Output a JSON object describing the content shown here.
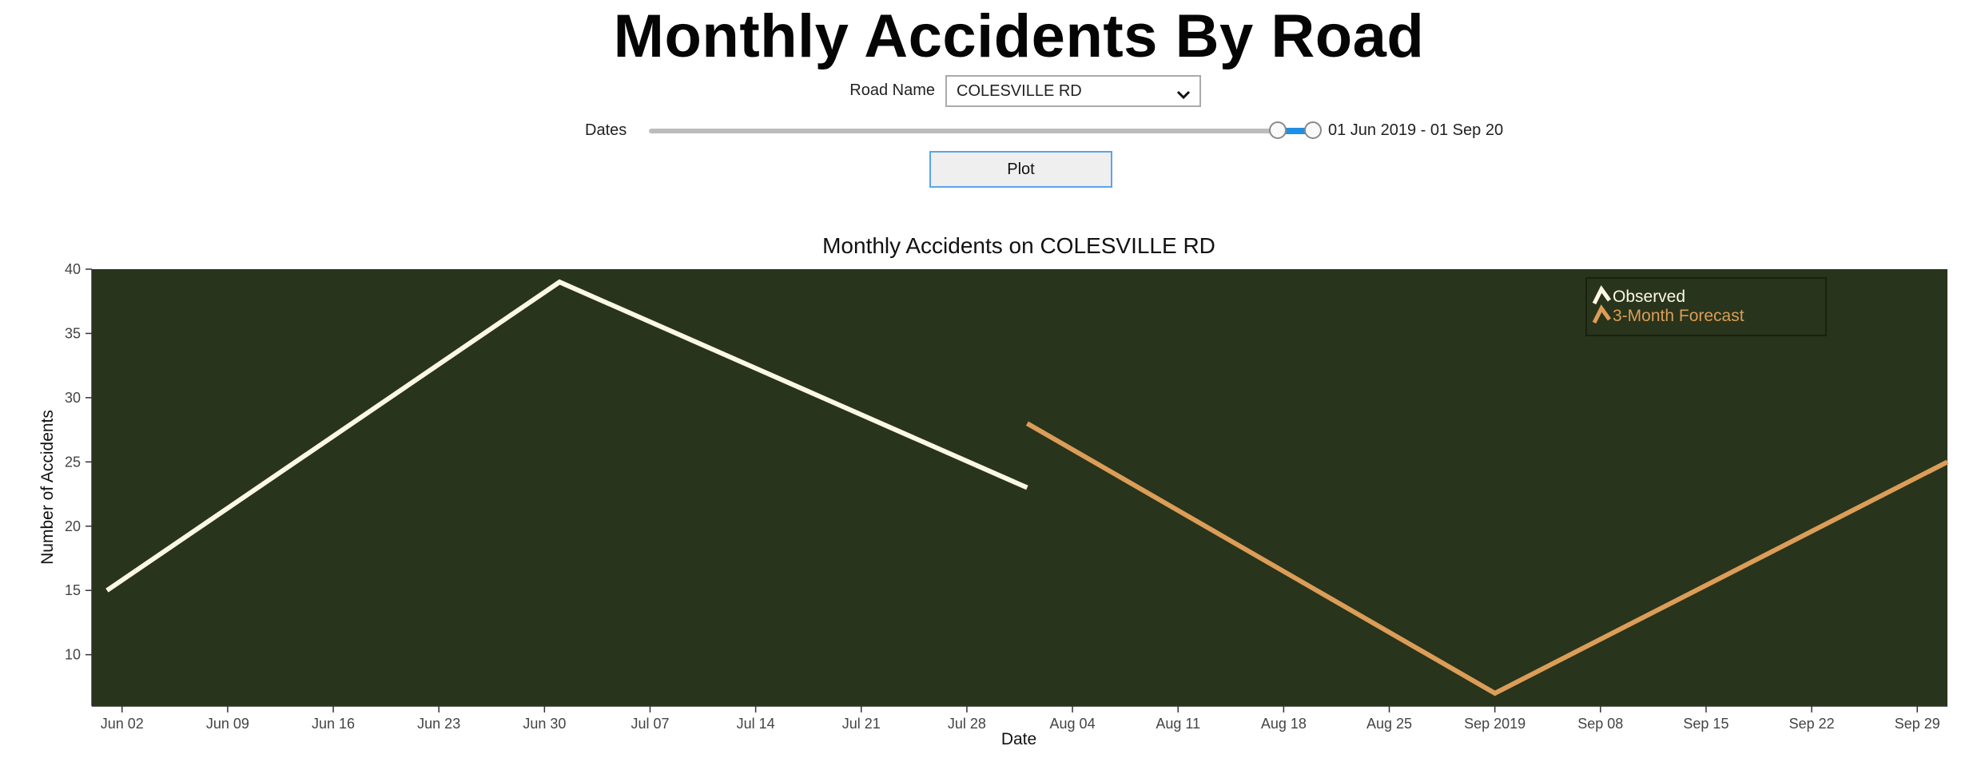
{
  "header": {
    "title": "Monthly Accidents By Road"
  },
  "controls": {
    "road_label": "Road Name",
    "road_value": "COLESVILLE RD",
    "dates_label": "Dates",
    "dates_value": "01 Jun 2019 - 01 Sep 20",
    "plot_label": "Plot"
  },
  "icons": {
    "select_arrow": "chevron-down-icon"
  },
  "colors": {
    "plot_bg": "#28341b",
    "observed": "#fbf8e4",
    "forecast": "#dc9d58",
    "legend_border": "#1a2110"
  },
  "chart_data": {
    "type": "line",
    "title": "Monthly Accidents on COLESVILLE RD",
    "xlabel": "Date",
    "ylabel": "Number of Accidents",
    "xlim": [
      "2019-05-31",
      "2019-10-01"
    ],
    "ylim": [
      6,
      40
    ],
    "y_ticks": [
      10,
      15,
      20,
      25,
      30,
      35,
      40
    ],
    "x_ticks": [
      {
        "date": "2019-06-02",
        "label": "Jun 02"
      },
      {
        "date": "2019-06-09",
        "label": "Jun 09"
      },
      {
        "date": "2019-06-16",
        "label": "Jun 16"
      },
      {
        "date": "2019-06-23",
        "label": "Jun 23"
      },
      {
        "date": "2019-06-30",
        "label": "Jun 30"
      },
      {
        "date": "2019-07-07",
        "label": "Jul 07"
      },
      {
        "date": "2019-07-14",
        "label": "Jul 14"
      },
      {
        "date": "2019-07-21",
        "label": "Jul 21"
      },
      {
        "date": "2019-07-28",
        "label": "Jul 28"
      },
      {
        "date": "2019-08-04",
        "label": "Aug 04"
      },
      {
        "date": "2019-08-11",
        "label": "Aug 11"
      },
      {
        "date": "2019-08-18",
        "label": "Aug 18"
      },
      {
        "date": "2019-08-25",
        "label": "Aug 25"
      },
      {
        "date": "2019-09-01",
        "label": "Sep 2019"
      },
      {
        "date": "2019-09-08",
        "label": "Sep 08"
      },
      {
        "date": "2019-09-15",
        "label": "Sep 15"
      },
      {
        "date": "2019-09-22",
        "label": "Sep 22"
      },
      {
        "date": "2019-09-29",
        "label": "Sep 29"
      }
    ],
    "grid": false,
    "legend_position": "top-right",
    "series": [
      {
        "name": "Observed",
        "points": [
          {
            "x": "2019-06-01",
            "y": 15
          },
          {
            "x": "2019-07-01",
            "y": 39
          },
          {
            "x": "2019-08-01",
            "y": 23
          }
        ]
      },
      {
        "name": "3-Month Forecast",
        "points": [
          {
            "x": "2019-08-01",
            "y": 28
          },
          {
            "x": "2019-09-01",
            "y": 7
          },
          {
            "x": "2019-10-01",
            "y": 25
          }
        ]
      }
    ]
  }
}
